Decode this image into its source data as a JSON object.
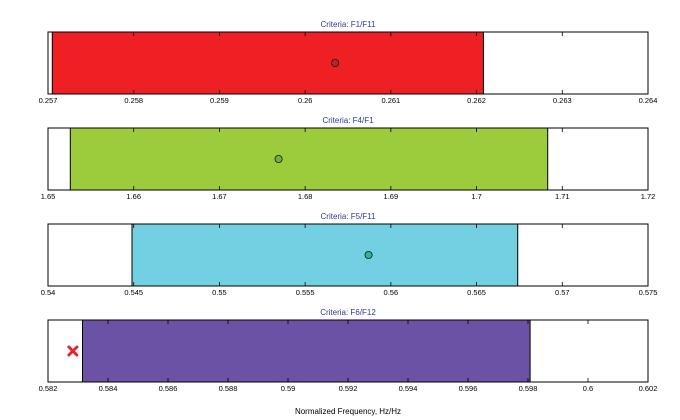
{
  "chart_data": {
    "type": "range",
    "xlabel": "Normalized Frequency, Hz/Hz",
    "panels": [
      {
        "title": "Criteria: F1/F11",
        "xlim": [
          0.257,
          0.264
        ],
        "ticks": [
          0.257,
          0.258,
          0.259,
          0.26,
          0.261,
          0.262,
          0.263,
          0.264
        ],
        "tick_labels": [
          "0.257",
          "0.258",
          "0.259",
          "0.26",
          "0.261",
          "0.262",
          "0.263",
          "0.264"
        ],
        "range": [
          0.25705,
          0.26208
        ],
        "color": "#ee2024",
        "marker": {
          "value": 0.26035,
          "shape": "circle",
          "fill": "#b3262a"
        }
      },
      {
        "title": "Criteria: F4/F1",
        "xlim": [
          1.65,
          1.72
        ],
        "ticks": [
          1.65,
          1.66,
          1.67,
          1.68,
          1.69,
          1.7,
          1.71,
          1.72
        ],
        "tick_labels": [
          "1.65",
          "1.66",
          "1.67",
          "1.68",
          "1.69",
          "1.7",
          "1.71",
          "1.72"
        ],
        "range": [
          1.6526,
          1.7083
        ],
        "color": "#9ccb3b",
        "marker": {
          "value": 1.6769,
          "shape": "circle",
          "fill": "#6fb13a"
        }
      },
      {
        "title": "Criteria: F5/F11",
        "xlim": [
          0.54,
          0.575
        ],
        "ticks": [
          0.54,
          0.545,
          0.55,
          0.555,
          0.56,
          0.565,
          0.57,
          0.575
        ],
        "tick_labels": [
          "0.54",
          "0.545",
          "0.55",
          "0.555",
          "0.56",
          "0.565",
          "0.57",
          "0.575"
        ],
        "range": [
          0.5449,
          0.5674
        ],
        "color": "#72d0e2",
        "marker": {
          "value": 0.5587,
          "shape": "circle",
          "fill": "#2bb39b"
        }
      },
      {
        "title": "Criteria: F6/F12",
        "xlim": [
          0.582,
          0.602
        ],
        "ticks": [
          0.582,
          0.584,
          0.586,
          0.588,
          0.59,
          0.592,
          0.594,
          0.596,
          0.598,
          0.6,
          0.602
        ],
        "tick_labels": [
          "0.582",
          "0.584",
          "0.586",
          "0.588",
          "0.59",
          "0.592",
          "0.594",
          "0.596",
          "0.598",
          "0.6",
          "0.602"
        ],
        "range": [
          0.58315,
          0.59807
        ],
        "color": "#6b52a4",
        "marker": {
          "value": 0.58283,
          "shape": "x",
          "fill": "#e3262b"
        }
      }
    ]
  }
}
